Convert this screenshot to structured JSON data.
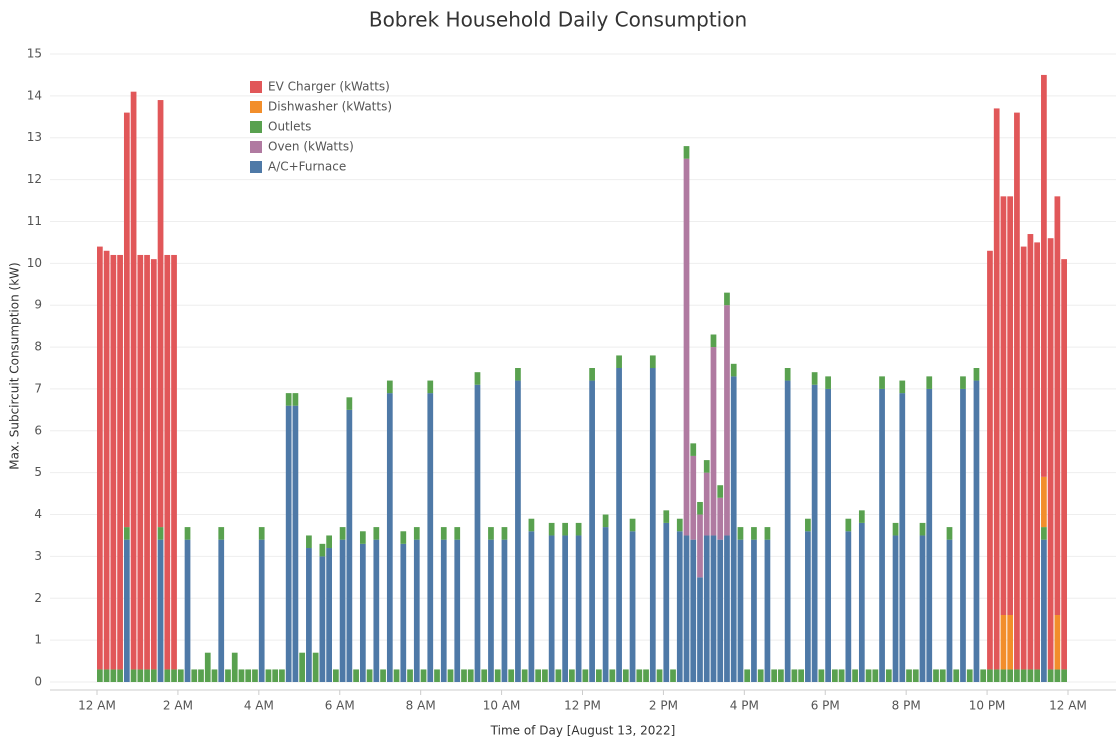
{
  "chart_data": {
    "type": "stacked_bar",
    "title": "Bobrek Household Daily Consumption",
    "x_label": "Time of Day [August 13, 2022]",
    "y_label": "Max. Subcircuit Consumption (kW)",
    "xlim": [
      0,
      1440
    ],
    "xticks": [
      {
        "value": 0,
        "label": "12 AM"
      },
      {
        "value": 120,
        "label": "2 AM"
      },
      {
        "value": 240,
        "label": "4 AM"
      },
      {
        "value": 360,
        "label": "6 AM"
      },
      {
        "value": 480,
        "label": "8 AM"
      },
      {
        "value": 600,
        "label": "10 AM"
      },
      {
        "value": 720,
        "label": "12 PM"
      },
      {
        "value": 840,
        "label": "2 PM"
      },
      {
        "value": 960,
        "label": "4 PM"
      },
      {
        "value": 1080,
        "label": "6 PM"
      },
      {
        "value": 1200,
        "label": "8 PM"
      },
      {
        "value": 1320,
        "label": "10 PM"
      },
      {
        "value": 1440,
        "label": "12 AM"
      }
    ],
    "ylim": [
      0,
      15
    ],
    "yticks": [
      0,
      1,
      2,
      3,
      4,
      5,
      6,
      7,
      8,
      9,
      10,
      11,
      12,
      13,
      14,
      15
    ],
    "grid": true,
    "legend": "top-left",
    "x": [
      0,
      10,
      20,
      30,
      40,
      50,
      60,
      70,
      80,
      90,
      100,
      110,
      120,
      130,
      140,
      150,
      160,
      170,
      180,
      190,
      200,
      210,
      220,
      230,
      240,
      250,
      260,
      270,
      280,
      290,
      300,
      310,
      320,
      330,
      340,
      350,
      360,
      370,
      380,
      390,
      400,
      410,
      420,
      430,
      440,
      450,
      460,
      470,
      480,
      490,
      500,
      510,
      520,
      530,
      540,
      550,
      560,
      570,
      580,
      590,
      600,
      610,
      620,
      630,
      640,
      650,
      660,
      670,
      680,
      690,
      700,
      710,
      720,
      730,
      740,
      750,
      760,
      770,
      780,
      790,
      800,
      810,
      820,
      830,
      840,
      850,
      860,
      870,
      880,
      890,
      900,
      910,
      920,
      930,
      940,
      950,
      960,
      970,
      980,
      990,
      1000,
      1010,
      1020,
      1030,
      1040,
      1050,
      1060,
      1070,
      1080,
      1090,
      1100,
      1110,
      1120,
      1130,
      1140,
      1150,
      1160,
      1170,
      1180,
      1190,
      1200,
      1210,
      1220,
      1230,
      1240,
      1250,
      1260,
      1270,
      1280,
      1290,
      1300,
      1310,
      1320,
      1330,
      1340,
      1350,
      1360,
      1370,
      1380,
      1390,
      1400,
      1410,
      1420,
      1430
    ],
    "series": [
      {
        "name": "EV Charger (kWatts)",
        "color": "#e15759",
        "values": [
          10.1,
          10.0,
          9.9,
          9.9,
          9.9,
          13.8,
          9.9,
          9.9,
          9.8,
          10.2,
          9.9,
          9.9,
          0,
          0,
          0,
          0,
          0,
          0,
          0,
          0,
          0,
          0,
          0,
          0,
          0,
          0,
          0,
          0,
          0,
          0,
          0,
          0,
          0,
          0,
          0,
          0,
          0,
          0,
          0,
          0,
          0,
          0,
          0,
          0,
          0,
          0,
          0,
          0,
          0,
          0,
          0,
          0,
          0,
          0,
          0,
          0,
          0,
          0,
          0,
          0,
          0,
          0,
          0,
          0,
          0,
          0,
          0,
          0,
          0,
          0,
          0,
          0,
          0,
          0,
          0,
          0,
          0,
          0,
          0,
          0,
          0,
          0,
          0,
          0,
          0,
          0,
          0,
          0,
          0,
          0,
          0,
          0,
          0,
          0,
          0,
          0,
          0,
          0,
          0,
          0,
          0,
          0,
          0,
          0,
          0,
          0,
          0,
          0,
          0,
          0,
          0,
          0,
          0,
          0,
          0,
          0,
          0,
          0,
          0,
          0,
          0,
          0,
          0,
          0,
          0,
          0,
          0,
          0,
          0,
          0,
          0,
          0,
          10.0,
          13.4,
          10.0,
          10.0,
          13.3,
          10.1,
          10.4,
          10.2,
          9.6,
          10.3,
          10.0,
          9.8
        ]
      },
      {
        "name": "Dishwasher (kWatts)",
        "color": "#f28e2b",
        "values": [
          0,
          0,
          0,
          0,
          0,
          0,
          0,
          0,
          0,
          0,
          0,
          0,
          0,
          0,
          0,
          0,
          0,
          0,
          0,
          0,
          0,
          0,
          0,
          0,
          0,
          0,
          0,
          0,
          0,
          0,
          0,
          0,
          0,
          0,
          0,
          0,
          0,
          0,
          0,
          0,
          0,
          0,
          0,
          0,
          0,
          0,
          0,
          0,
          0,
          0,
          0,
          0,
          0,
          0,
          0,
          0,
          0,
          0,
          0,
          0,
          0,
          0,
          0,
          0,
          0,
          0,
          0,
          0,
          0,
          0,
          0,
          0,
          0,
          0,
          0,
          0,
          0,
          0,
          0,
          0,
          0,
          0,
          0,
          0,
          0,
          0,
          0,
          0,
          0,
          0,
          0,
          0,
          0,
          0,
          0,
          0,
          0,
          0,
          0,
          0,
          0,
          0,
          0,
          0,
          0,
          0,
          0,
          0,
          0,
          0,
          0,
          0,
          0,
          0,
          0,
          0,
          0,
          0,
          0,
          0,
          0,
          0,
          0,
          0,
          0,
          0,
          0,
          0,
          0,
          0,
          0,
          0,
          0,
          0,
          1.3,
          1.3,
          0,
          0,
          0,
          0,
          1.2,
          0,
          1.3,
          0
        ]
      },
      {
        "name": "Outlets",
        "color": "#59a14f",
        "values": [
          0.3,
          0.3,
          0.3,
          0.3,
          0.3,
          0.3,
          0.3,
          0.3,
          0.3,
          0.3,
          0.3,
          0.3,
          0.3,
          0.3,
          0.3,
          0.3,
          0.7,
          0.3,
          0.3,
          0.3,
          0.7,
          0.3,
          0.3,
          0.3,
          0.3,
          0.3,
          0.3,
          0.3,
          0.3,
          0.3,
          0.7,
          0.3,
          0.7,
          0.3,
          0.3,
          0.3,
          0.3,
          0.3,
          0.3,
          0.3,
          0.3,
          0.3,
          0.3,
          0.3,
          0.3,
          0.3,
          0.3,
          0.3,
          0.3,
          0.3,
          0.3,
          0.3,
          0.3,
          0.3,
          0.3,
          0.3,
          0.3,
          0.3,
          0.3,
          0.3,
          0.3,
          0.3,
          0.3,
          0.3,
          0.3,
          0.3,
          0.3,
          0.3,
          0.3,
          0.3,
          0.3,
          0.3,
          0.3,
          0.3,
          0.3,
          0.3,
          0.3,
          0.3,
          0.3,
          0.3,
          0.3,
          0.3,
          0.3,
          0.3,
          0.3,
          0.3,
          0.3,
          0.3,
          0.3,
          0.3,
          0.3,
          0.3,
          0.3,
          0.3,
          0.3,
          0.3,
          0.3,
          0.3,
          0.3,
          0.3,
          0.3,
          0.3,
          0.3,
          0.3,
          0.3,
          0.3,
          0.3,
          0.3,
          0.3,
          0.3,
          0.3,
          0.3,
          0.3,
          0.3,
          0.3,
          0.3,
          0.3,
          0.3,
          0.3,
          0.3,
          0.3,
          0.3,
          0.3,
          0.3,
          0.3,
          0.3,
          0.3,
          0.3,
          0.3,
          0.3,
          0.3,
          0.3,
          0.3,
          0.3,
          0.3,
          0.3,
          0.3,
          0.3,
          0.3,
          0.3,
          0.3,
          0.3,
          0.3,
          0.3
        ]
      },
      {
        "name": "Oven (kWatts)",
        "color": "#b07aa1",
        "values": [
          0,
          0,
          0,
          0,
          0,
          0,
          0,
          0,
          0,
          0,
          0,
          0,
          0,
          0,
          0,
          0,
          0,
          0,
          0,
          0,
          0,
          0,
          0,
          0,
          0,
          0,
          0,
          0,
          0,
          0,
          0,
          0,
          0,
          0,
          0,
          0,
          0,
          0,
          0,
          0,
          0,
          0,
          0,
          0,
          0,
          0,
          0,
          0,
          0,
          0,
          0,
          0,
          0,
          0,
          0,
          0,
          0,
          0,
          0,
          0,
          0,
          0,
          0,
          0,
          0,
          0,
          0,
          0,
          0,
          0,
          0,
          0,
          0,
          0,
          0,
          0,
          0,
          0,
          0,
          0,
          0,
          0,
          0,
          0,
          0,
          0,
          0,
          9.0,
          2.0,
          1.5,
          1.5,
          4.5,
          1.0,
          5.5,
          0,
          0,
          0,
          0,
          0,
          0,
          0,
          0,
          0,
          0,
          0,
          0,
          0,
          0,
          0,
          0,
          0,
          0,
          0,
          0,
          0,
          0,
          0,
          0,
          0,
          0,
          0,
          0,
          0,
          0,
          0,
          0,
          0,
          0,
          0,
          0,
          0,
          0,
          0,
          0,
          0,
          0,
          0,
          0,
          0,
          0,
          0,
          0,
          0,
          0
        ]
      },
      {
        "name": "A/C+Furnace",
        "color": "#4e79a7",
        "values": [
          0,
          0,
          0,
          0,
          3.4,
          0,
          0,
          0,
          0,
          3.4,
          0,
          0,
          0,
          3.4,
          0,
          0,
          0,
          0,
          3.4,
          0,
          0,
          0,
          0,
          0,
          3.4,
          0,
          0,
          0,
          6.6,
          6.6,
          0,
          3.2,
          0,
          3.0,
          3.2,
          0,
          3.4,
          6.5,
          0,
          3.3,
          0,
          3.4,
          0,
          6.9,
          0,
          3.3,
          0,
          3.4,
          0,
          6.9,
          0,
          3.4,
          0,
          3.4,
          0,
          0,
          7.1,
          0,
          3.4,
          0,
          3.4,
          0,
          7.2,
          0,
          3.6,
          0,
          0,
          3.5,
          0,
          3.5,
          0,
          3.5,
          0,
          7.2,
          0,
          3.7,
          0,
          7.5,
          0,
          3.6,
          0,
          0,
          7.5,
          0,
          3.8,
          0,
          3.6,
          3.5,
          3.4,
          2.5,
          3.5,
          3.5,
          3.4,
          3.5,
          7.3,
          3.4,
          0,
          3.4,
          0,
          3.4,
          0,
          0,
          7.2,
          0,
          0,
          3.6,
          7.1,
          0,
          7.0,
          0,
          0,
          3.6,
          0,
          3.8,
          0,
          0,
          7.0,
          0,
          3.5,
          6.9,
          0,
          0,
          3.5,
          7.0,
          0,
          0,
          3.4,
          0,
          7.0,
          0,
          7.2,
          0,
          0,
          0,
          0,
          0,
          0,
          0,
          0,
          0,
          3.4,
          0,
          0,
          0
        ]
      }
    ]
  }
}
